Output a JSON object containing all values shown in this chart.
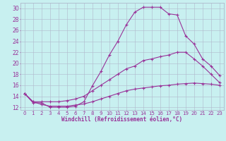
{
  "xlabel": "Windchill (Refroidissement éolien,°C)",
  "background_color": "#c8f0f0",
  "line_color": "#993399",
  "grid_color": "#b0b8cc",
  "xlim": [
    -0.5,
    23.5
  ],
  "ylim": [
    11.5,
    31.0
  ],
  "xticks": [
    0,
    1,
    2,
    3,
    4,
    5,
    6,
    7,
    8,
    9,
    10,
    11,
    12,
    13,
    14,
    15,
    16,
    17,
    18,
    19,
    20,
    21,
    22,
    23
  ],
  "yticks": [
    12,
    14,
    16,
    18,
    20,
    22,
    24,
    26,
    28,
    30
  ],
  "line1_x": [
    0,
    1,
    2,
    3,
    4,
    5,
    6,
    7,
    8,
    9,
    10,
    11,
    12,
    13,
    14,
    15,
    16,
    17,
    18,
    19,
    20,
    21,
    22,
    23
  ],
  "line1_y": [
    14.5,
    12.8,
    12.8,
    12.0,
    12.0,
    12.0,
    12.2,
    13.0,
    15.9,
    18.5,
    21.5,
    24.0,
    27.0,
    29.3,
    30.2,
    30.2,
    30.2,
    29.0,
    28.8,
    25.0,
    23.5,
    20.8,
    19.5,
    17.8
  ],
  "line2_x": [
    0,
    1,
    2,
    3,
    4,
    5,
    6,
    7,
    8,
    9,
    10,
    11,
    12,
    13,
    14,
    15,
    16,
    17,
    18,
    19,
    20,
    21,
    22,
    23
  ],
  "line2_y": [
    14.5,
    13.0,
    13.0,
    13.0,
    13.0,
    13.2,
    13.5,
    14.0,
    15.0,
    16.0,
    17.0,
    18.0,
    19.0,
    19.5,
    20.5,
    20.8,
    21.2,
    21.5,
    22.0,
    22.0,
    20.8,
    19.5,
    18.0,
    16.5
  ],
  "line3_x": [
    0,
    1,
    2,
    3,
    4,
    5,
    6,
    7,
    8,
    9,
    10,
    11,
    12,
    13,
    14,
    15,
    16,
    17,
    18,
    19,
    20,
    21,
    22,
    23
  ],
  "line3_y": [
    14.5,
    13.0,
    12.5,
    12.2,
    12.2,
    12.2,
    12.4,
    12.6,
    13.0,
    13.5,
    14.0,
    14.5,
    15.0,
    15.3,
    15.5,
    15.7,
    15.9,
    16.0,
    16.2,
    16.3,
    16.4,
    16.3,
    16.2,
    16.0
  ]
}
